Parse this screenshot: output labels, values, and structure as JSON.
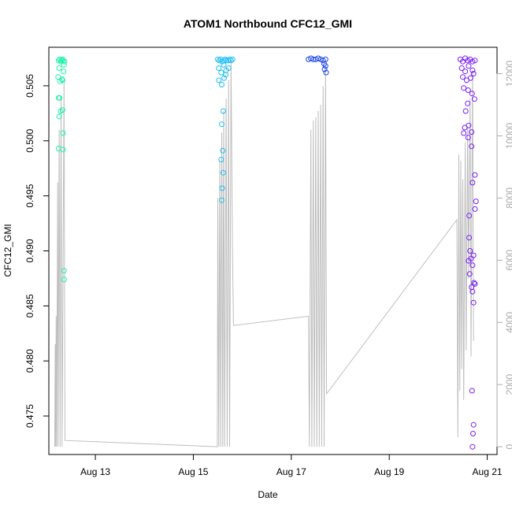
{
  "chart_data": {
    "type": "scatter",
    "title": "ATOM1 Northbound CFC12_GMI",
    "xlabel": "Date",
    "ylabel": "CFC12_GMI",
    "x_ticks": [
      "Aug 13",
      "Aug 15",
      "Aug 17",
      "Aug 19",
      "Aug 21"
    ],
    "x_tick_days": [
      13,
      15,
      17,
      19,
      21
    ],
    "xlim": [
      12.05,
      21.2
    ],
    "y_ticks": [
      0.475,
      0.48,
      0.485,
      0.49,
      0.495,
      0.5,
      0.505
    ],
    "ylim": [
      0.4715,
      0.5085
    ],
    "y2_ticks": [
      0,
      2000,
      4000,
      6000,
      8000,
      10000,
      12000
    ],
    "y2lim": [
      -250,
      12850
    ],
    "grid": false,
    "legend": "none",
    "colors": {
      "background_line": "#bebebe",
      "right_axis": "#aaaaaa",
      "cluster1": "#1ef0aa",
      "cluster2": "#1ebef0",
      "cluster3": "#1e46e6",
      "cluster4": "#7a1ef0"
    },
    "series": [
      {
        "color": "#1ef0aa",
        "points": [
          [
            12.25,
            0.5073
          ],
          [
            12.27,
            0.5074
          ],
          [
            12.29,
            0.5072
          ],
          [
            12.31,
            0.5073
          ],
          [
            12.33,
            0.5074
          ],
          [
            12.35,
            0.5073
          ],
          [
            12.37,
            0.5072
          ],
          [
            12.24,
            0.5058
          ],
          [
            12.26,
            0.5066
          ],
          [
            12.28,
            0.5054
          ],
          [
            12.32,
            0.5056
          ],
          [
            12.33,
            0.5055
          ],
          [
            12.35,
            0.5063
          ],
          [
            12.36,
            0.5069
          ],
          [
            12.25,
            0.5039
          ],
          [
            12.27,
            0.5039
          ],
          [
            12.29,
            0.5027
          ],
          [
            12.26,
            0.5022
          ],
          [
            12.33,
            0.5028
          ],
          [
            12.34,
            0.5007
          ],
          [
            12.25,
            0.4993
          ],
          [
            12.34,
            0.4992
          ],
          [
            12.36,
            0.4882
          ],
          [
            12.36,
            0.4874
          ]
        ]
      },
      {
        "color": "#1ebef0",
        "points": [
          [
            15.5,
            0.5074
          ],
          [
            15.53,
            0.5073
          ],
          [
            15.56,
            0.5074
          ],
          [
            15.59,
            0.5072
          ],
          [
            15.62,
            0.5073
          ],
          [
            15.65,
            0.5074
          ],
          [
            15.68,
            0.5073
          ],
          [
            15.71,
            0.5073
          ],
          [
            15.74,
            0.5074
          ],
          [
            15.77,
            0.5073
          ],
          [
            15.8,
            0.5074
          ],
          [
            15.52,
            0.5066
          ],
          [
            15.57,
            0.5062
          ],
          [
            15.62,
            0.5069
          ],
          [
            15.67,
            0.5064
          ],
          [
            15.72,
            0.5066
          ],
          [
            15.52,
            0.5055
          ],
          [
            15.58,
            0.5051
          ],
          [
            15.63,
            0.5057
          ],
          [
            15.66,
            0.506
          ],
          [
            15.61,
            0.5027
          ],
          [
            15.58,
            0.5015
          ],
          [
            15.6,
            0.4991
          ],
          [
            15.57,
            0.4983
          ],
          [
            15.61,
            0.4971
          ],
          [
            15.59,
            0.4957
          ],
          [
            15.58,
            0.4946
          ]
        ]
      },
      {
        "color": "#1e46e6",
        "points": [
          [
            17.35,
            0.5074
          ],
          [
            17.4,
            0.5075
          ],
          [
            17.45,
            0.5074
          ],
          [
            17.5,
            0.5074
          ],
          [
            17.55,
            0.5075
          ],
          [
            17.6,
            0.5074
          ],
          [
            17.65,
            0.5073
          ],
          [
            17.7,
            0.5074
          ],
          [
            17.67,
            0.507
          ],
          [
            17.7,
            0.5068
          ],
          [
            17.68,
            0.5065
          ],
          [
            17.71,
            0.5062
          ]
        ]
      },
      {
        "color": "#7a1ef0",
        "points": [
          [
            20.45,
            0.5074
          ],
          [
            20.5,
            0.5072
          ],
          [
            20.55,
            0.5075
          ],
          [
            20.6,
            0.5073
          ],
          [
            20.65,
            0.5074
          ],
          [
            20.7,
            0.5072
          ],
          [
            20.75,
            0.5073
          ],
          [
            20.48,
            0.5066
          ],
          [
            20.55,
            0.5063
          ],
          [
            20.62,
            0.5068
          ],
          [
            20.7,
            0.5064
          ],
          [
            20.5,
            0.5058
          ],
          [
            20.58,
            0.5055
          ],
          [
            20.66,
            0.5057
          ],
          [
            20.72,
            0.5061
          ],
          [
            20.52,
            0.5048
          ],
          [
            20.61,
            0.5046
          ],
          [
            20.69,
            0.5043
          ],
          [
            20.74,
            0.5038
          ],
          [
            20.6,
            0.5034
          ],
          [
            20.56,
            0.5027
          ],
          [
            20.54,
            0.5012
          ],
          [
            20.62,
            0.5014
          ],
          [
            20.68,
            0.5008
          ],
          [
            20.52,
            0.5007
          ],
          [
            20.68,
            0.4995
          ],
          [
            20.61,
            0.5003
          ],
          [
            20.75,
            0.4969
          ],
          [
            20.7,
            0.4962
          ],
          [
            20.77,
            0.4945
          ],
          [
            20.75,
            0.4938
          ],
          [
            20.63,
            0.4932
          ],
          [
            20.63,
            0.4912
          ],
          [
            20.65,
            0.49
          ],
          [
            20.72,
            0.4896
          ],
          [
            20.67,
            0.4893
          ],
          [
            20.62,
            0.4891
          ],
          [
            20.7,
            0.4887
          ],
          [
            20.64,
            0.4879
          ],
          [
            20.68,
            0.4867
          ],
          [
            20.73,
            0.4871
          ],
          [
            20.75,
            0.487
          ],
          [
            20.7,
            0.4863
          ],
          [
            20.72,
            0.4853
          ],
          [
            20.69,
            0.4773
          ],
          [
            20.72,
            0.4742
          ],
          [
            20.71,
            0.4734
          ],
          [
            20.7,
            0.4722
          ]
        ]
      }
    ],
    "altitude_line": {
      "axis": "right",
      "points": [
        [
          12.17,
          0
        ],
        [
          12.18,
          3300
        ],
        [
          12.19,
          0
        ],
        [
          12.2,
          4200
        ],
        [
          12.21,
          0
        ],
        [
          12.23,
          8500
        ],
        [
          12.24,
          0
        ],
        [
          12.26,
          10200
        ],
        [
          12.28,
          0
        ],
        [
          12.3,
          11300
        ],
        [
          12.32,
          0
        ],
        [
          12.36,
          11800
        ],
        [
          12.38,
          200
        ],
        [
          15.49,
          0
        ],
        [
          15.5,
          8000
        ],
        [
          15.52,
          0
        ],
        [
          15.54,
          9200
        ],
        [
          15.56,
          0
        ],
        [
          15.58,
          10100
        ],
        [
          15.6,
          0
        ],
        [
          15.62,
          10800
        ],
        [
          15.64,
          0
        ],
        [
          15.67,
          11200
        ],
        [
          15.69,
          0
        ],
        [
          15.72,
          11800
        ],
        [
          15.74,
          0
        ],
        [
          15.77,
          12400
        ],
        [
          15.8,
          6200
        ],
        [
          15.82,
          3900
        ],
        [
          17.35,
          4200
        ],
        [
          17.37,
          0
        ],
        [
          17.4,
          10200
        ],
        [
          17.42,
          0
        ],
        [
          17.45,
          10500
        ],
        [
          17.47,
          0
        ],
        [
          17.5,
          10600
        ],
        [
          17.52,
          0
        ],
        [
          17.55,
          10800
        ],
        [
          17.57,
          0
        ],
        [
          17.6,
          11000
        ],
        [
          17.62,
          0
        ],
        [
          17.65,
          11600
        ],
        [
          17.67,
          0
        ],
        [
          17.7,
          12200
        ],
        [
          17.72,
          1700
        ],
        [
          20.38,
          7300
        ],
        [
          20.4,
          300
        ],
        [
          20.42,
          9400
        ],
        [
          20.44,
          1800
        ],
        [
          20.46,
          9200
        ],
        [
          20.48,
          2500
        ],
        [
          20.5,
          8600
        ],
        [
          20.52,
          1500
        ],
        [
          20.55,
          9800
        ],
        [
          20.57,
          3100
        ],
        [
          20.6,
          10300
        ],
        [
          20.62,
          5400
        ],
        [
          20.65,
          11200
        ],
        [
          20.67,
          2900
        ],
        [
          20.7,
          12100
        ],
        [
          20.72,
          3400
        ]
      ]
    }
  }
}
